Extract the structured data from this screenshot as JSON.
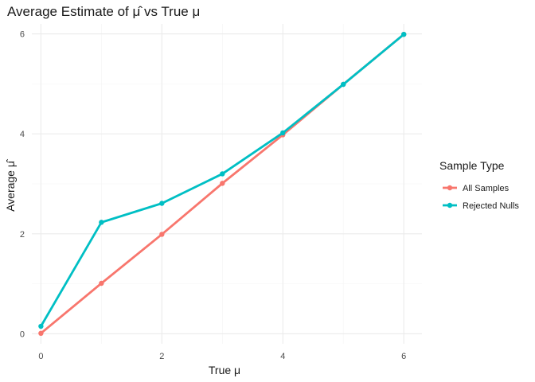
{
  "chart_data": {
    "type": "line",
    "title": "Average Estimate of μ̂ vs True μ",
    "xlabel": "True μ",
    "ylabel": "Average μ̂",
    "x": [
      0,
      1,
      2,
      3,
      4,
      5,
      6
    ],
    "xticks": [
      0,
      2,
      4,
      6
    ],
    "yticks": [
      0,
      2,
      4,
      6
    ],
    "xlim": [
      -0.15,
      6.3
    ],
    "ylim": [
      -0.2,
      6.2
    ],
    "grid": true,
    "legend": {
      "title": "Sample Type",
      "position": "right"
    },
    "series": [
      {
        "name": "All Samples",
        "color": "#F8766D",
        "values": [
          0.01,
          1.01,
          1.99,
          3.01,
          3.98,
          4.99,
          5.99
        ]
      },
      {
        "name": "Rejected Nulls",
        "color": "#00BFC4",
        "values": [
          0.15,
          2.23,
          2.61,
          3.2,
          4.02,
          4.99,
          5.99
        ]
      }
    ]
  }
}
